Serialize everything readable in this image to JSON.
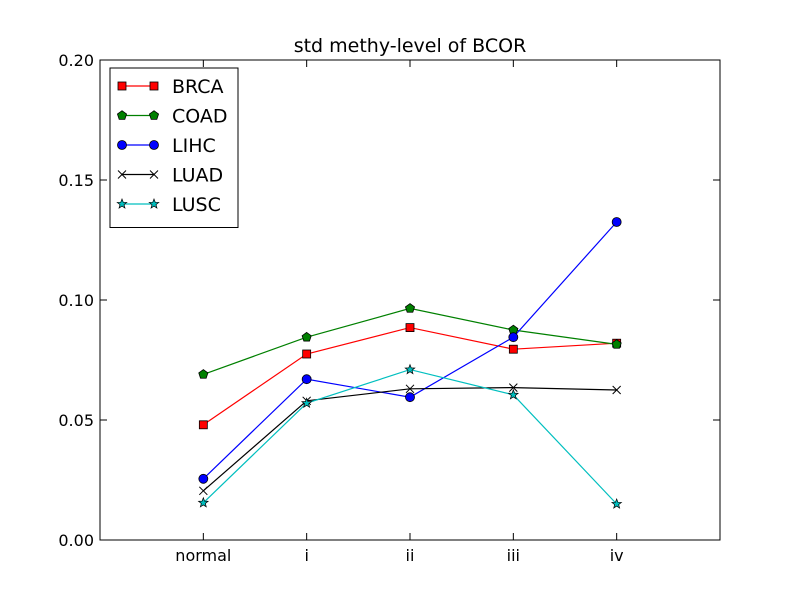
{
  "chart_data": {
    "type": "line",
    "title": "std methy-level of BCOR",
    "xlabel": "",
    "ylabel": "",
    "categories": [
      "normal",
      "i",
      "ii",
      "iii",
      "iv"
    ],
    "ylim": [
      0.0,
      0.2
    ],
    "yticks": [
      "0.00",
      "0.05",
      "0.10",
      "0.15",
      "0.20"
    ],
    "legend_position": "top-left",
    "grid": false,
    "series": [
      {
        "name": "BRCA",
        "color": "#ff0000",
        "marker": "square",
        "values": [
          0.048,
          0.0775,
          0.0885,
          0.0795,
          0.082
        ]
      },
      {
        "name": "COAD",
        "color": "#008000",
        "marker": "pentagon",
        "values": [
          0.069,
          0.0845,
          0.0965,
          0.0875,
          0.0815
        ]
      },
      {
        "name": "LIHC",
        "color": "#0000ff",
        "marker": "circle",
        "values": [
          0.0255,
          0.067,
          0.0595,
          0.0845,
          0.1325
        ]
      },
      {
        "name": "LUAD",
        "color": "#000000",
        "marker": "x",
        "values": [
          0.0205,
          0.058,
          0.063,
          0.0635,
          0.0625
        ]
      },
      {
        "name": "LUSC",
        "color": "#00bfbf",
        "marker": "star",
        "values": [
          0.0155,
          0.057,
          0.071,
          0.0605,
          0.015
        ]
      }
    ]
  }
}
